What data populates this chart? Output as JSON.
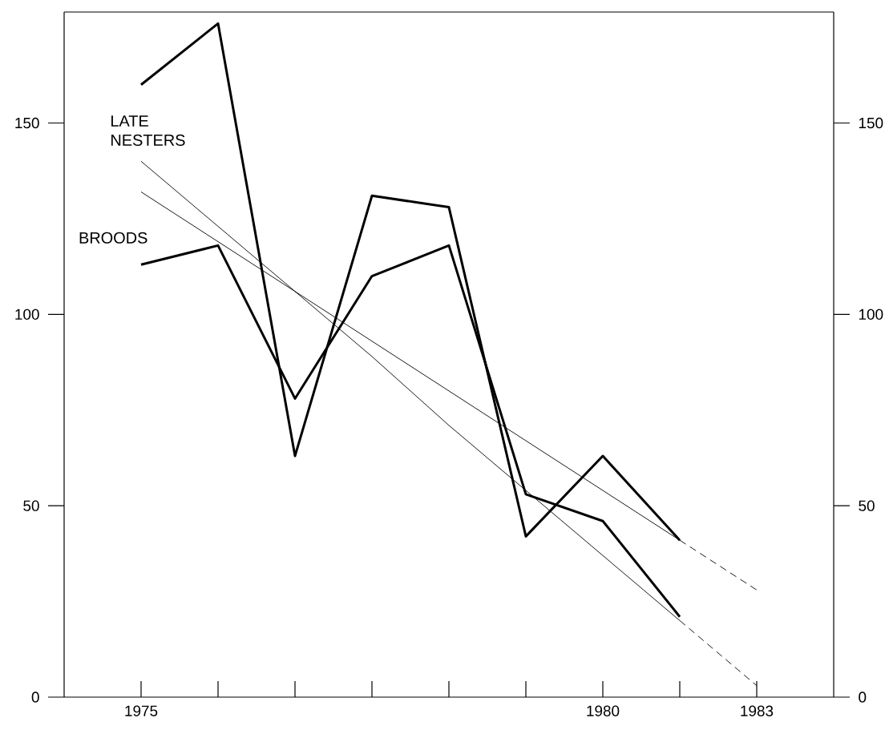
{
  "chart_data": {
    "type": "line",
    "categories": [
      "1975",
      null,
      null,
      null,
      null,
      null,
      "1980",
      null,
      "1983"
    ],
    "series": [
      {
        "name": "LATE NESTERS",
        "color": "#000000",
        "values": [
          160,
          176,
          63,
          131,
          128,
          42,
          63,
          41,
          null
        ]
      },
      {
        "name": "BROODS",
        "color": "#000000",
        "values": [
          113,
          118,
          78,
          110,
          118,
          53,
          46,
          21,
          null
        ]
      },
      {
        "color": "#000000",
        "values": [
          132,
          119,
          106,
          93,
          80,
          67,
          54,
          41,
          null
        ]
      },
      {
        "color": "#000000",
        "values": [
          140,
          123,
          106,
          89,
          71,
          54,
          37,
          20,
          null
        ]
      },
      {
        "color": "#000000",
        "line_style": "dashed",
        "values": [
          null,
          null,
          null,
          null,
          null,
          null,
          null,
          41,
          28
        ]
      },
      {
        "color": "#000000",
        "line_style": "dashed",
        "values": [
          null,
          null,
          null,
          null,
          null,
          null,
          null,
          20,
          3
        ]
      }
    ],
    "ylim": [
      0,
      179
    ],
    "yticks": [
      0,
      50,
      100,
      150
    ],
    "y2lim": [
      0,
      179
    ],
    "y2ticks": [
      0,
      50,
      100,
      150
    ],
    "grid": false
  }
}
